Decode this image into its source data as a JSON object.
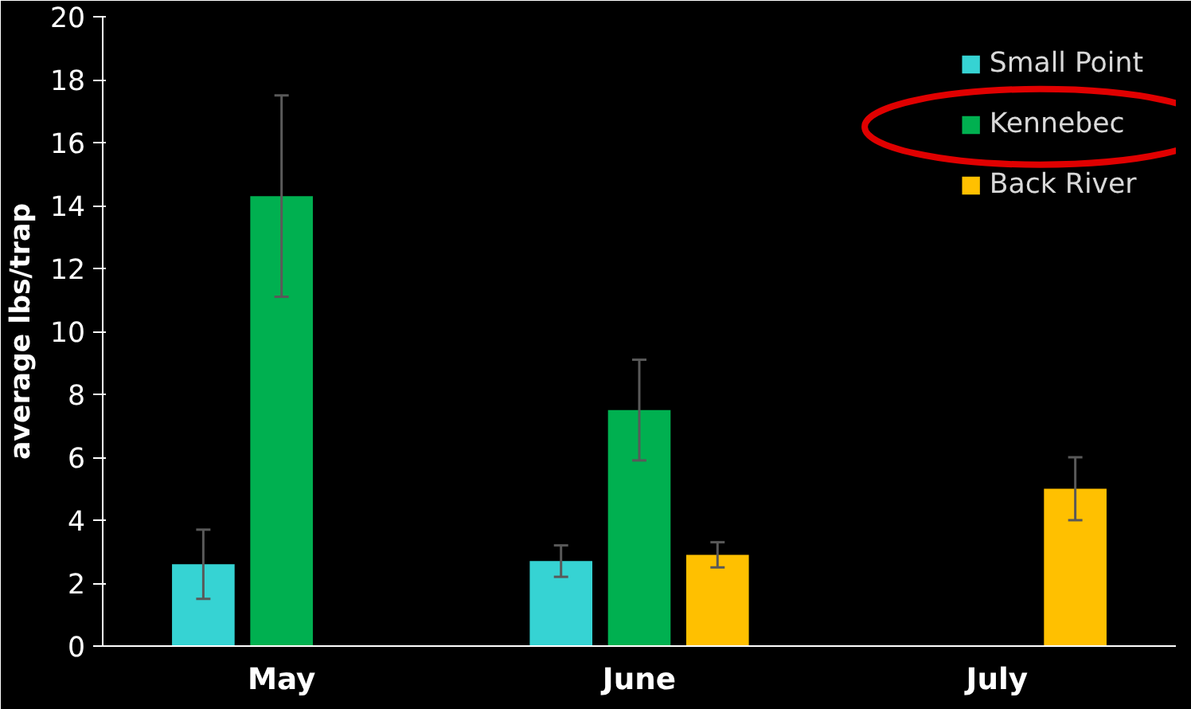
{
  "chart_data": {
    "type": "bar",
    "ylabel": "average lbs/trap",
    "categories": [
      "May",
      "June",
      "July"
    ],
    "series": [
      {
        "name": "Small Point",
        "color": "#36d3d3",
        "values": [
          2.6,
          2.7,
          null
        ],
        "errors": [
          [
            1.5,
            3.7
          ],
          [
            2.2,
            3.2
          ],
          null
        ]
      },
      {
        "name": "Kennebec",
        "color": "#00b050",
        "values": [
          14.3,
          7.5,
          null
        ],
        "errors": [
          [
            11.1,
            17.5
          ],
          [
            5.9,
            9.1
          ],
          null
        ]
      },
      {
        "name": "Back River",
        "color": "#ffc000",
        "values": [
          null,
          2.9,
          5.0
        ],
        "errors": [
          null,
          [
            2.5,
            3.3
          ],
          [
            4.0,
            6.0
          ]
        ]
      }
    ],
    "ylim": [
      0,
      20
    ],
    "yticks": [
      0,
      2,
      4,
      6,
      8,
      10,
      12,
      14,
      16,
      18,
      20
    ],
    "grid": false,
    "legend": "top right"
  }
}
